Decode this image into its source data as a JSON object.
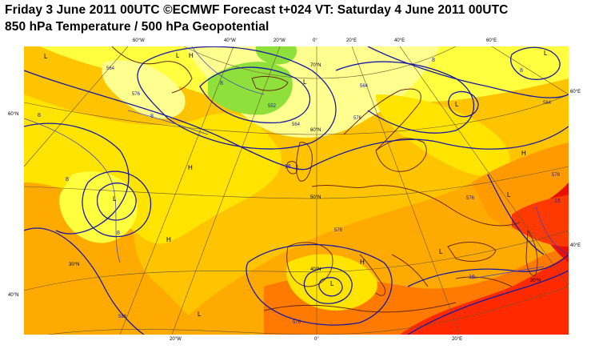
{
  "header": {
    "line1": "Friday 3 June 2011 00UTC ©ECMWF Forecast t+024 VT: Saturday 4 June 2011 00UTC",
    "line2": "850 hPa Temperature / 500 hPa Geopotential"
  },
  "map": {
    "top_lon_labels": [
      "60°W",
      "40°W",
      "20°W",
      "0°",
      "20°E",
      "40°E",
      "60°E"
    ],
    "bottom_lon_labels": [
      "20°W",
      "0°",
      "20°E"
    ],
    "left_lat_labels": [
      "60°N",
      "40°N"
    ],
    "right_lat_labels": [
      "60°E",
      "40°E"
    ],
    "inner_lat_labels": [
      "70°N",
      "60°N",
      "50°N",
      "40°N",
      "30°N",
      "30°N"
    ],
    "pressure_centres": [
      "L",
      "H",
      "L",
      "L",
      "L",
      "L",
      "H",
      "H",
      "H",
      "L",
      "L",
      "L",
      "L",
      "L",
      "H"
    ],
    "geopotential_labels": [
      "552",
      "564",
      "576",
      "564",
      "576",
      "564",
      "576",
      "576",
      "576",
      "588",
      "564",
      "576"
    ],
    "temperature_labels": [
      "8",
      "8",
      "8",
      "8",
      "8",
      "8",
      "8",
      "16",
      "16",
      "16"
    ],
    "colors": {
      "cold_green": "#8fe03a",
      "pale_yellow": "#ffff80",
      "yellow": "#ffff00",
      "light_orange": "#ffd000",
      "orange": "#ffaa00",
      "dark_orange": "#ff7a00",
      "red": "#ff2a00",
      "deep_red": "#e00000",
      "contour_blue": "#1a1aa0",
      "coast_brown": "#6b2a10",
      "grid_line": "#6a5530"
    }
  }
}
